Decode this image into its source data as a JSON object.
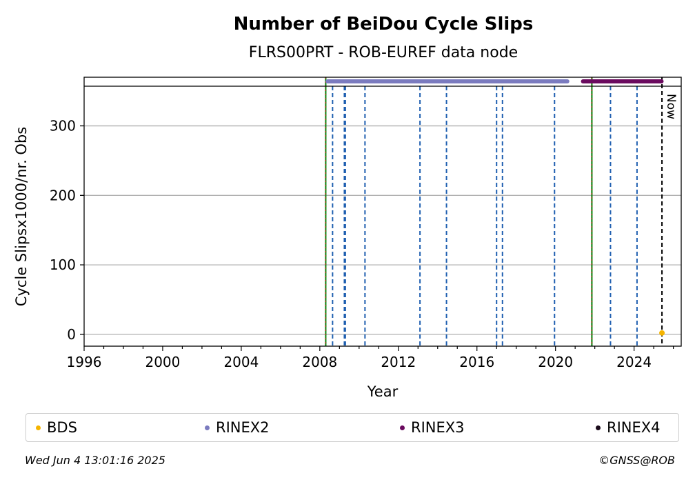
{
  "chart_data": {
    "type": "scatter",
    "title": "Number of BeiDou Cycle Slips",
    "subtitle": "FLRS00PRT - ROB-EUREF data node",
    "xlabel": "Year",
    "ylabel": "Cycle Slipsx1000/nr. Obs",
    "xlim": [
      1996,
      2026.4
    ],
    "ylim": [
      -17,
      370
    ],
    "x_ticks": [
      1996,
      2000,
      2004,
      2008,
      2012,
      2016,
      2020,
      2024
    ],
    "y_ticks": [
      0,
      100,
      200,
      300
    ],
    "grid": "y",
    "series": [
      {
        "name": "BDS",
        "color": "#f5b400",
        "points": [
          [
            2025.42,
            2
          ]
        ]
      },
      {
        "name": "RINEX2",
        "color": "#7b7bbf",
        "range": [
          2008.4,
          2020.6
        ]
      },
      {
        "name": "RINEX3",
        "color": "#6a0a5e",
        "range": [
          2021.4,
          2025.4
        ]
      },
      {
        "name": "RINEX4",
        "color": "#1a0a1a",
        "range": []
      }
    ],
    "vlines_equipment": [
      2008.65,
      2009.25,
      2009.3,
      2010.3,
      2013.1,
      2014.45,
      2017.0,
      2017.3,
      2019.95,
      2022.8,
      2024.15
    ],
    "vlines_green_red": [
      2008.3,
      2021.85
    ],
    "now_line": 2025.42,
    "now_label": "Now",
    "legend_placement": "bottom"
  },
  "legend": [
    {
      "label": "BDS",
      "color": "#f5b400"
    },
    {
      "label": "RINEX2",
      "color": "#7b7bbf"
    },
    {
      "label": "RINEX3",
      "color": "#6a0a5e"
    },
    {
      "label": "RINEX4",
      "color": "#1a0a1a"
    }
  ],
  "footer": {
    "timestamp": "Wed Jun  4 13:01:16 2025",
    "copyright": "©GNSS@ROB"
  }
}
